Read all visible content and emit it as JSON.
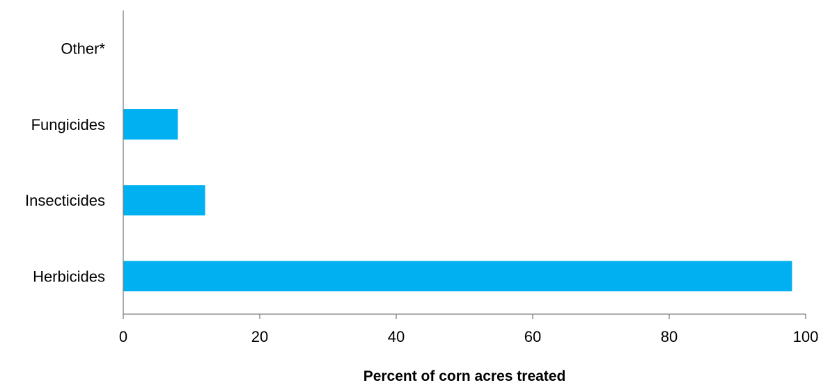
{
  "chart_data": {
    "type": "bar",
    "orientation": "horizontal",
    "categories": [
      "Other*",
      "Fungicides",
      "Insecticides",
      "Herbicides"
    ],
    "values": [
      0,
      8,
      12,
      98
    ],
    "xlabel": "Percent of corn acres treated",
    "ylabel": "",
    "xlim": [
      0,
      100
    ],
    "xticks": [
      0,
      20,
      40,
      60,
      80,
      100
    ],
    "grid": false,
    "legend": "none",
    "bar_color": "#00b0f0"
  }
}
